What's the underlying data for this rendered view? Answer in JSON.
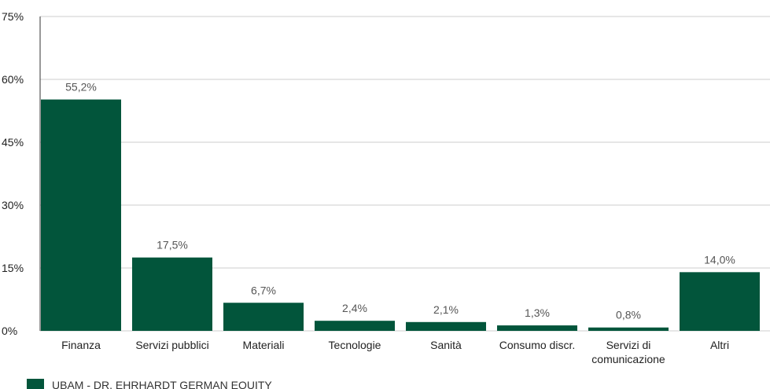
{
  "chart_data": {
    "type": "bar",
    "categories": [
      [
        "Finanza"
      ],
      [
        "Servizi pubblici"
      ],
      [
        "Materiali"
      ],
      [
        "Tecnologie"
      ],
      [
        "Sanità"
      ],
      [
        "Consumo discr."
      ],
      [
        "Servizi di",
        "comunicazione"
      ],
      [
        "Altri"
      ]
    ],
    "series": [
      {
        "name": "UBAM - DR. EHRHARDT GERMAN EQUITY",
        "values": [
          55.2,
          17.5,
          6.7,
          2.4,
          2.1,
          1.3,
          0.8,
          14.0
        ],
        "labels": [
          "55,2%",
          "17,5%",
          "6,7%",
          "2,4%",
          "2,1%",
          "1,3%",
          "0,8%",
          "14,0%"
        ],
        "color": "#02553b"
      }
    ],
    "yticks": [
      0,
      15,
      30,
      45,
      60,
      75
    ],
    "ytick_labels": [
      "0%",
      "15%",
      "30%",
      "45%",
      "60%",
      "75%"
    ],
    "ylim": [
      0,
      75
    ],
    "grid": true,
    "legend_position": "bottom-left",
    "title": "",
    "xlabel": "",
    "ylabel": ""
  },
  "colors": {
    "bar": "#02553b",
    "grid": "#cccccc",
    "axis": "#333333"
  }
}
